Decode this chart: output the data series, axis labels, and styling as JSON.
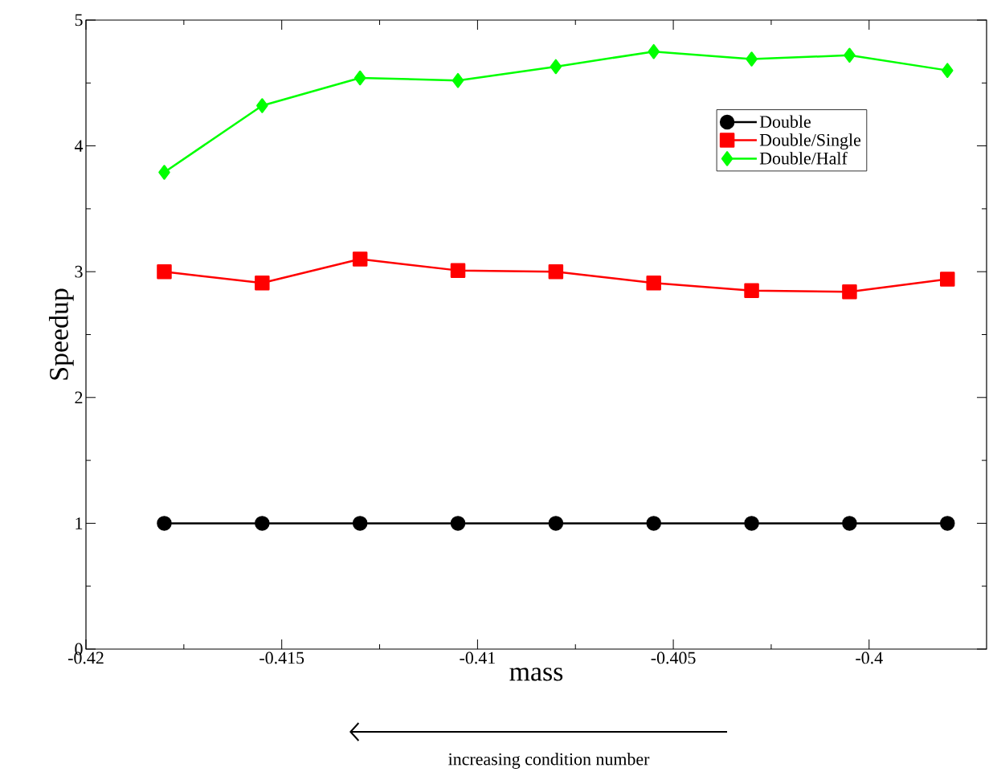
{
  "chart_data": {
    "type": "line",
    "xlabel": "mass",
    "ylabel": "Speedup",
    "x": [
      -0.418,
      -0.4155,
      -0.413,
      -0.4105,
      -0.408,
      -0.4055,
      -0.403,
      -0.4005,
      -0.398
    ],
    "series": [
      {
        "name": "Double",
        "color": "#000000",
        "marker": "circle",
        "values": [
          1,
          1,
          1,
          1,
          1,
          1,
          1,
          1,
          1
        ]
      },
      {
        "name": "Double/Single",
        "color": "#ff0000",
        "marker": "square",
        "values": [
          3.0,
          2.91,
          3.1,
          3.01,
          3.0,
          2.91,
          2.85,
          2.84,
          2.94
        ]
      },
      {
        "name": "Double/Half",
        "color": "#00ff00",
        "marker": "diamond",
        "values": [
          3.79,
          4.32,
          4.54,
          4.52,
          4.63,
          4.75,
          4.69,
          4.72,
          4.6
        ]
      }
    ],
    "xlim": [
      -0.42,
      -0.397
    ],
    "xticks": [
      -0.42,
      -0.415,
      -0.41,
      -0.405,
      -0.4
    ],
    "ylim": [
      0,
      5
    ],
    "yticks": [
      0,
      1,
      2,
      3,
      4,
      5
    ],
    "grid": false,
    "legend": "top right",
    "line_style": "solid",
    "annotations": [
      "increasing condition number"
    ]
  }
}
